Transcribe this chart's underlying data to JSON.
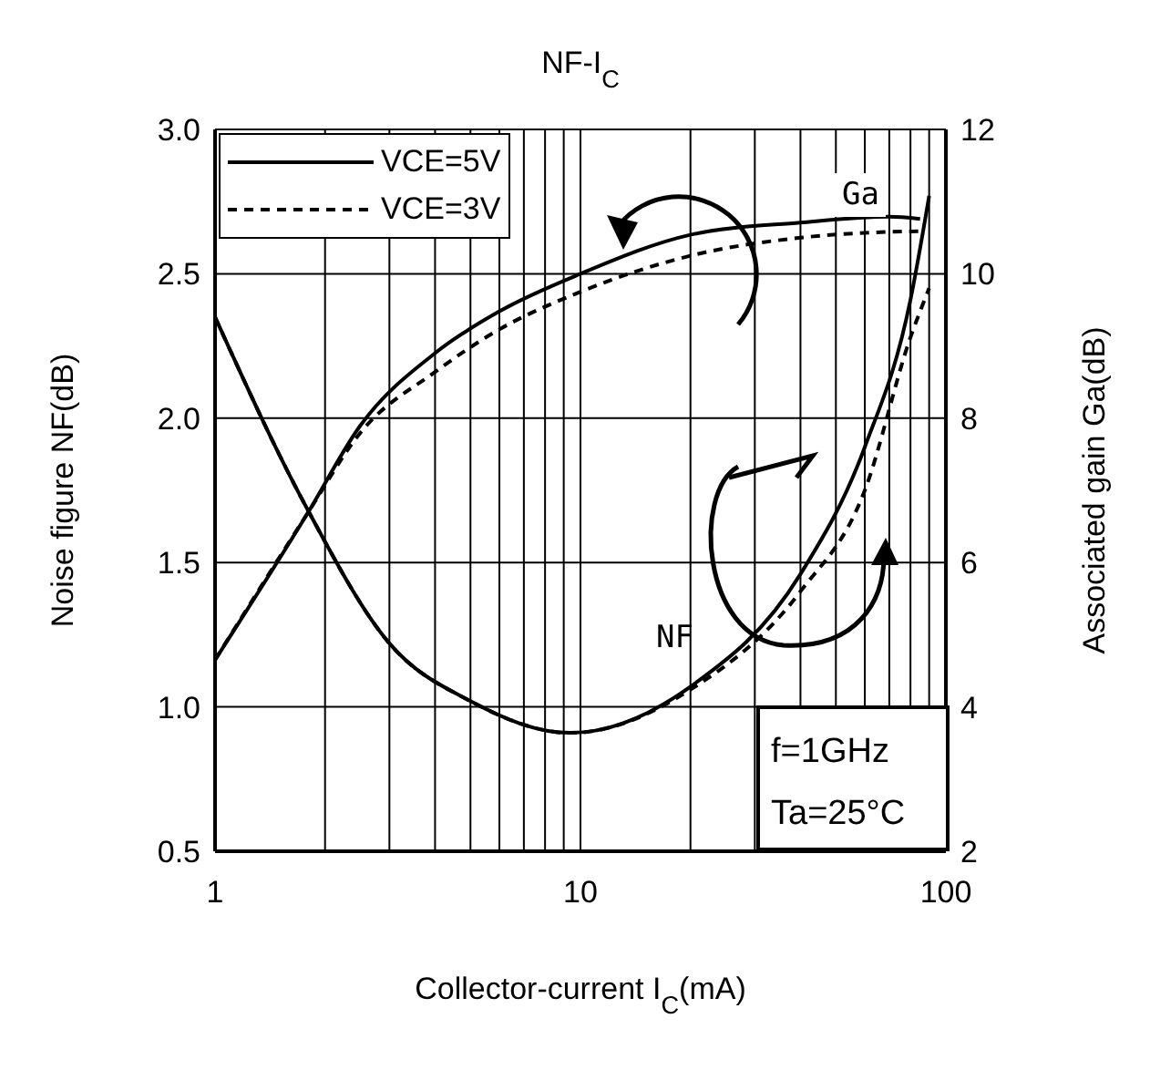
{
  "chart_data": {
    "type": "line",
    "title": "NF-I$_{C}$",
    "xlabel": "Collector-current I$_{C}$(mA)",
    "ylabel": "Noise figure NF(dB)",
    "y2label": "Associated gain Ga(dB)",
    "log": "x",
    "grid": true,
    "legend": "top left",
    "marker": "none",
    "xlim": [
      1,
      100
    ],
    "xticks": [
      1,
      {
        "value": 2,
        "label": null
      },
      {
        "value": 3,
        "label": null
      },
      {
        "value": 4,
        "label": null
      },
      {
        "value": 5,
        "label": null
      },
      {
        "value": 6,
        "label": null
      },
      {
        "value": 7,
        "label": null
      },
      {
        "value": 8,
        "label": null
      },
      {
        "value": 9,
        "label": null
      },
      10,
      {
        "value": 20,
        "label": null
      },
      {
        "value": 30,
        "label": null
      },
      {
        "value": 40,
        "label": null
      },
      {
        "value": 50,
        "label": null
      },
      {
        "value": 60,
        "label": null
      },
      {
        "value": 70,
        "label": null
      },
      {
        "value": 80,
        "label": null
      },
      {
        "value": 90,
        "label": null
      },
      100
    ],
    "ylim": [
      0.5,
      3.0
    ],
    "yticks": [
      {
        "value": 0.5,
        "label": "0.5"
      },
      {
        "value": 1,
        "label": "1.0"
      },
      {
        "value": 1.5,
        "label": "1.5"
      },
      {
        "value": 2,
        "label": "2.0"
      },
      {
        "value": 2.5,
        "label": "2.5"
      },
      {
        "value": 3,
        "label": "3.0"
      }
    ],
    "y2lim": [
      2,
      12
    ],
    "y2ticks": [
      2,
      4,
      6,
      8,
      10,
      12
    ],
    "series": [
      {
        "name": "VCE=5V",
        "color": "#000000",
        "line_style": "solid",
        "x": [
          1,
          1.78,
          3,
          5,
          9.4,
          20,
          40,
          60,
          80,
          90
        ],
        "values": [
          2.35,
          1.69,
          1.22,
          1.02,
          0.91,
          1.07,
          1.46,
          1.9,
          2.41,
          2.77
        ]
      },
      {
        "name": "VCE=3V",
        "color": "#000000",
        "line_style": "dashed",
        "x": [
          1,
          1.78,
          3,
          5,
          9.4,
          20,
          40,
          60,
          80,
          90
        ],
        "values": [
          2.35,
          1.69,
          1.22,
          1.02,
          0.91,
          1.06,
          1.4,
          1.75,
          2.28,
          2.45
        ]
      },
      {
        "color": "#000000",
        "line_style": "solid",
        "axis": "y2",
        "x": [
          1,
          1.78,
          2.5,
          4,
          6,
          10,
          20,
          40,
          70,
          85
        ],
        "values": [
          4.65,
          6.66,
          7.9,
          8.9,
          9.48,
          10.0,
          10.54,
          10.71,
          10.79,
          10.76
        ]
      },
      {
        "color": "#000000",
        "line_style": "dashed",
        "axis": "y2",
        "x": [
          1,
          1.78,
          2.5,
          4,
          6,
          10,
          20,
          40,
          70,
          85
        ],
        "values": [
          4.65,
          6.66,
          7.8,
          8.64,
          9.23,
          9.75,
          10.25,
          10.5,
          10.58,
          10.59
        ]
      }
    ],
    "annotations": [
      "Ga",
      "NF",
      "f=1GHz",
      "Ta=25°C"
    ]
  }
}
